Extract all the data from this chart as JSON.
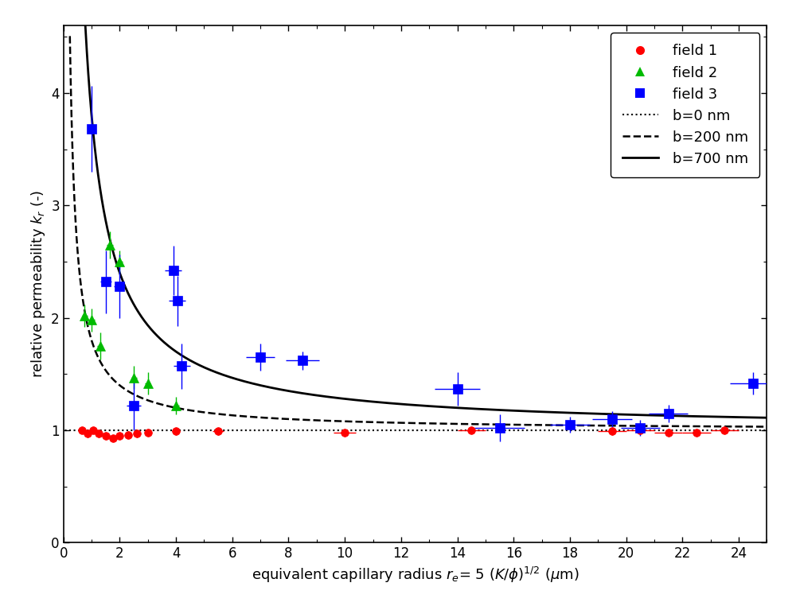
{
  "title": "",
  "xlabel": "equivalent capillary radius $r_e$= 5 $(K/\\phi)^{1/2}$ ($\\mu$m)",
  "ylabel": "relative permeability $k_r$ (-)",
  "xlim": [
    0,
    25
  ],
  "ylim": [
    0,
    4.6
  ],
  "xticks": [
    0,
    2,
    4,
    6,
    8,
    10,
    12,
    14,
    16,
    18,
    20,
    22,
    24
  ],
  "yticks": [
    0,
    1,
    2,
    3,
    4
  ],
  "field1_x": [
    0.65,
    0.85,
    1.05,
    1.25,
    1.5,
    1.75,
    2.0,
    2.3,
    2.6,
    3.0,
    4.0,
    5.5,
    10.0,
    14.5,
    19.5,
    20.5,
    21.5,
    22.5,
    23.5
  ],
  "field1_y": [
    1.0,
    0.97,
    1.0,
    0.97,
    0.95,
    0.93,
    0.95,
    0.96,
    0.97,
    0.98,
    0.99,
    0.99,
    0.98,
    1.0,
    0.99,
    1.0,
    0.98,
    0.98,
    1.0
  ],
  "field1_xerr": [
    0.1,
    0.1,
    0.1,
    0.1,
    0.1,
    0.1,
    0.1,
    0.1,
    0.1,
    0.1,
    0.15,
    0.2,
    0.4,
    0.5,
    0.5,
    0.5,
    0.5,
    0.5,
    0.5
  ],
  "field1_yerr": [
    0.03,
    0.03,
    0.03,
    0.03,
    0.03,
    0.03,
    0.03,
    0.03,
    0.03,
    0.03,
    0.03,
    0.03,
    0.03,
    0.03,
    0.03,
    0.03,
    0.03,
    0.03,
    0.03
  ],
  "field2_x": [
    0.75,
    1.0,
    1.3,
    1.65,
    2.0,
    2.5,
    3.0,
    4.0
  ],
  "field2_y": [
    2.02,
    1.98,
    1.75,
    2.65,
    2.5,
    1.47,
    1.42,
    1.22
  ],
  "field2_xerr": [
    0.1,
    0.1,
    0.1,
    0.1,
    0.1,
    0.1,
    0.1,
    0.1
  ],
  "field2_yerr": [
    0.1,
    0.1,
    0.12,
    0.12,
    0.1,
    0.1,
    0.1,
    0.08
  ],
  "field3_x": [
    1.0,
    1.5,
    2.0,
    2.5,
    3.9,
    4.05,
    4.2,
    7.0,
    8.5,
    14.0,
    15.5,
    18.0,
    19.5,
    20.5,
    21.5,
    24.5
  ],
  "field3_y": [
    3.68,
    2.32,
    2.28,
    1.22,
    2.42,
    2.15,
    1.57,
    1.65,
    1.62,
    1.37,
    1.02,
    1.05,
    1.1,
    1.02,
    1.15,
    1.42
  ],
  "field3_xerr": [
    0.15,
    0.2,
    0.2,
    0.25,
    0.3,
    0.3,
    0.3,
    0.5,
    0.6,
    0.8,
    0.9,
    0.7,
    0.7,
    0.7,
    0.7,
    0.8
  ],
  "field3_yerr": [
    0.38,
    0.28,
    0.28,
    0.22,
    0.22,
    0.22,
    0.2,
    0.12,
    0.08,
    0.15,
    0.12,
    0.07,
    0.07,
    0.07,
    0.08,
    0.1
  ],
  "field1_color": "#FF0000",
  "field2_color": "#00BB00",
  "field3_color": "#0000FF",
  "legend_fontsize": 13,
  "tick_fontsize": 12,
  "axis_label_fontsize": 13,
  "figwidth": 10.0,
  "figheight": 7.67
}
